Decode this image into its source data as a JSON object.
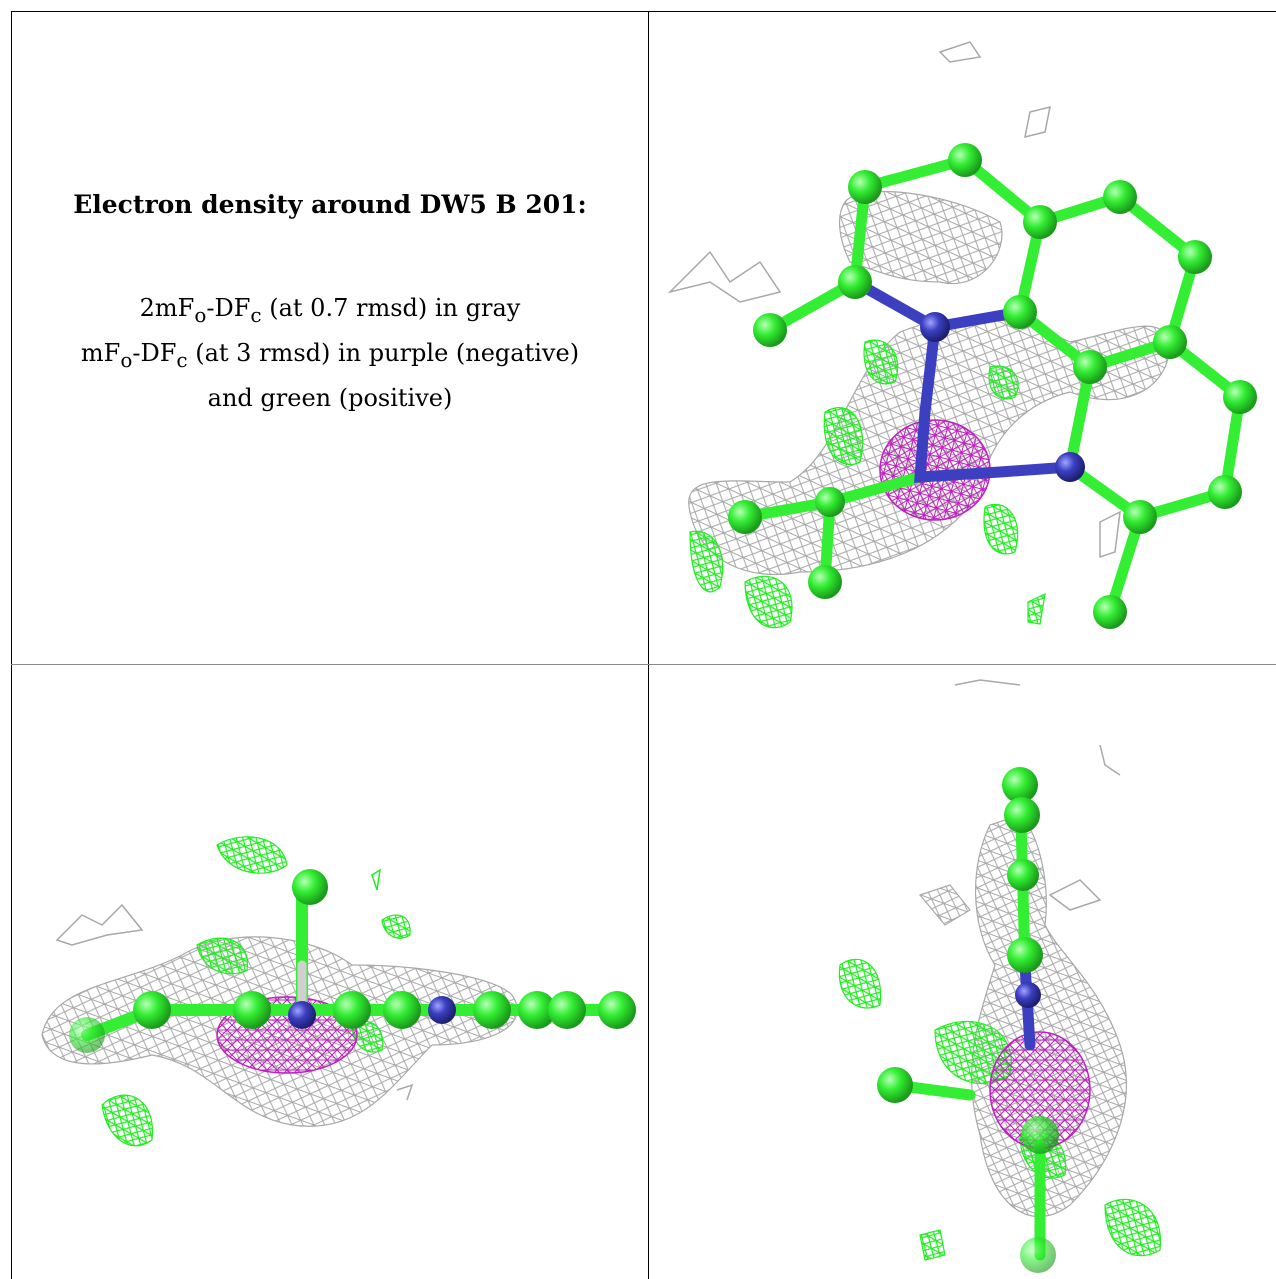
{
  "caption": {
    "title": "Electron density around DW5 B 201:",
    "line1_pre": "2mF",
    "line1_sub1": "o",
    "line1_mid": "-DF",
    "line1_sub2": "c",
    "line1_post": " (at 0.7 rmsd) in gray",
    "line2_pre": "mF",
    "line2_sub1": "o",
    "line2_mid": "-DF",
    "line2_sub2": "c",
    "line2_post": " (at 3 rmsd) in purple (negative)",
    "line3": "and green (positive)"
  },
  "colors": {
    "carbon": "#33ee33",
    "nitrogen": "#3b3fc0",
    "mesh_gray": "#a8a8a8",
    "mesh_green": "#22ee22",
    "mesh_purple": "#c020c0",
    "grid_line": "#000000"
  },
  "panels": [
    {
      "id": "view-top-right",
      "subject": "ligand-ball-and-stick-front"
    },
    {
      "id": "view-bottom-left",
      "subject": "ligand-ball-and-stick-edge"
    },
    {
      "id": "view-bottom-right",
      "subject": "ligand-ball-and-stick-side"
    }
  ]
}
